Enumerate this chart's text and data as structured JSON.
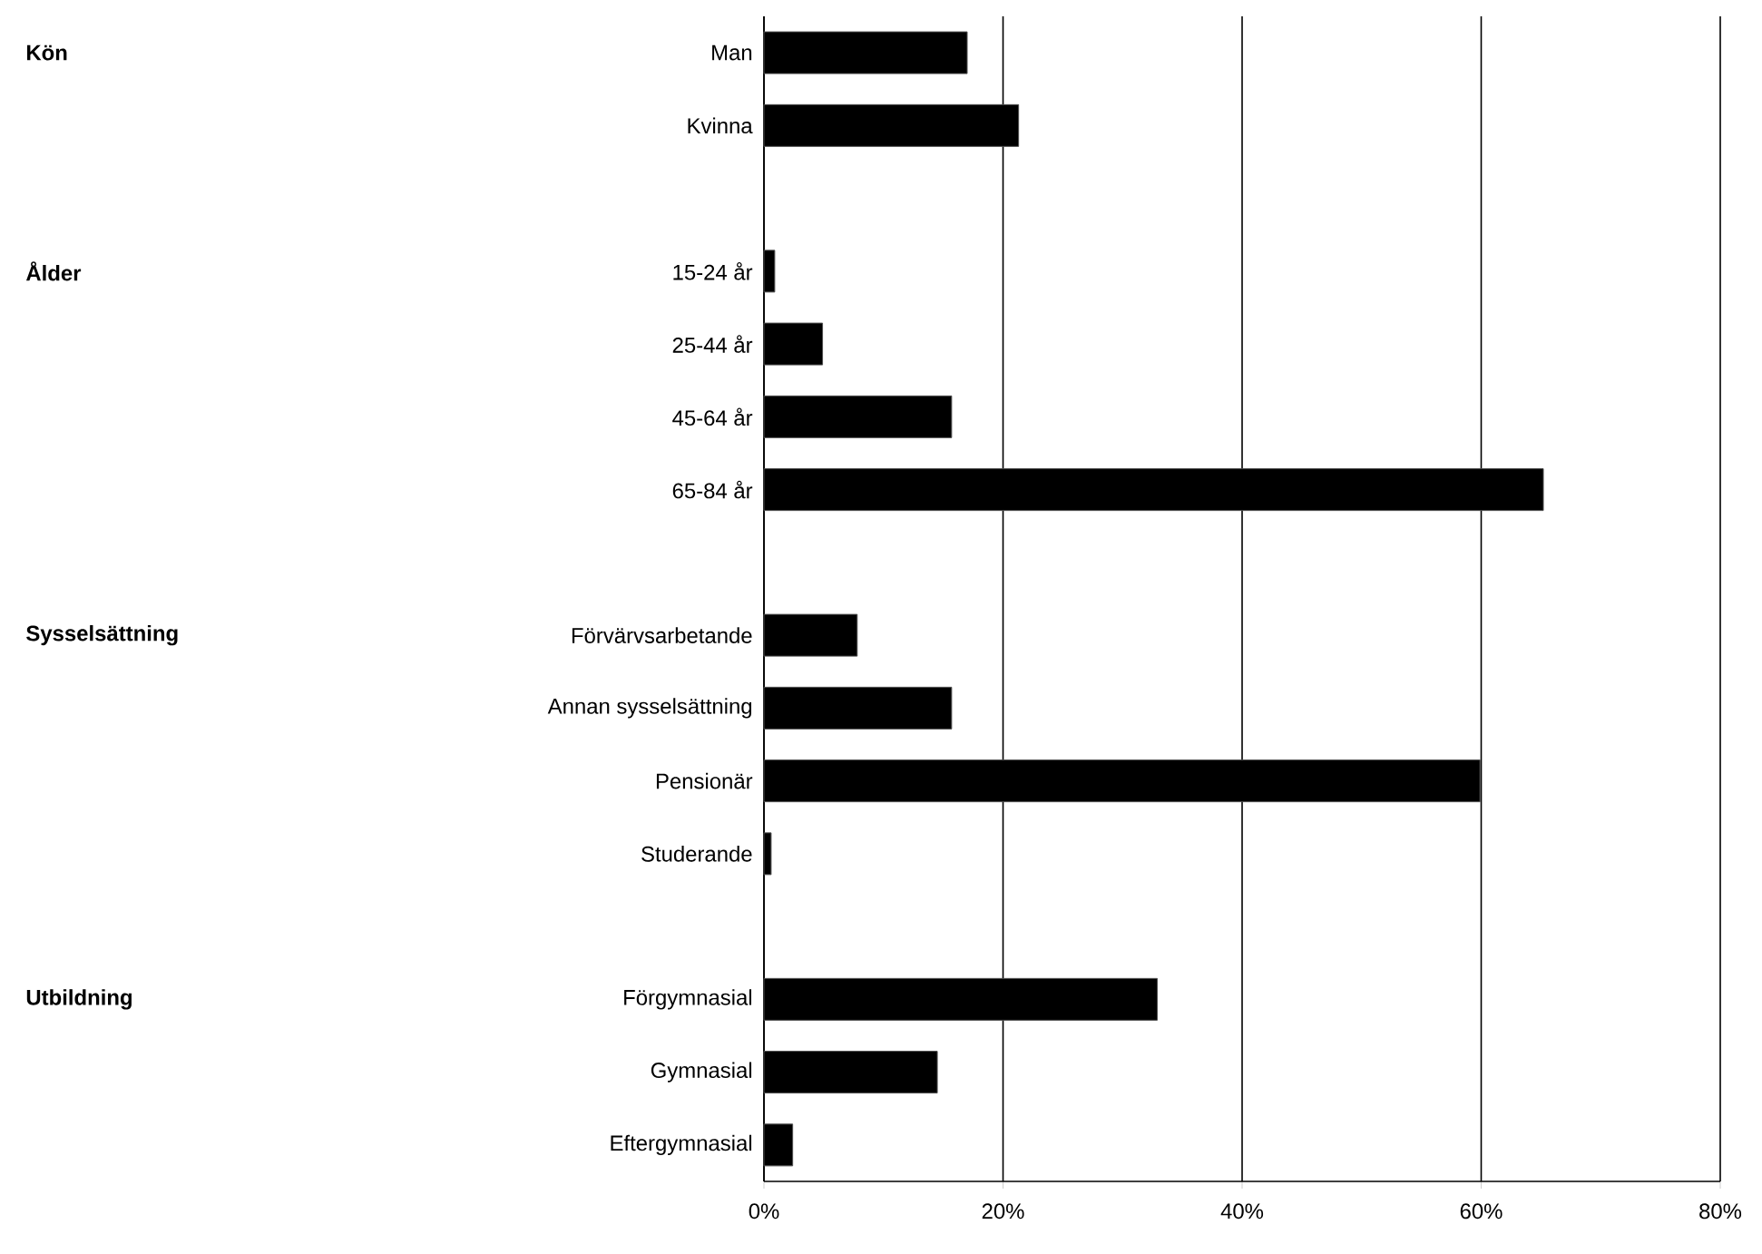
{
  "chart_data": {
    "type": "bar",
    "orientation": "horizontal",
    "categories": [
      "Man",
      "Kvinna",
      null,
      "15-24 år",
      "25-44 år",
      "45-64 år",
      "65-84 år",
      null,
      "Förvärvsarbetande",
      "Annan sysselsättning",
      "Pensionär",
      "Studerande",
      null,
      "Förgymnasial",
      "Gymnasial",
      "Eftergymnasial"
    ],
    "values": [
      17.0,
      21.3,
      null,
      0.9,
      4.9,
      15.7,
      65.2,
      null,
      7.8,
      15.7,
      59.9,
      0.6,
      null,
      32.9,
      14.5,
      2.4
    ],
    "color": "#000000",
    "xlim": [
      0,
      80
    ],
    "xticks": [
      {
        "value": 0,
        "label": "0%"
      },
      {
        "value": 20,
        "label": "20%"
      },
      {
        "value": 40,
        "label": "40%"
      },
      {
        "value": 60,
        "label": "60%"
      },
      {
        "value": 80,
        "label": "80%"
      }
    ],
    "grid": "x",
    "annotations": [
      "Kön",
      "Ålder",
      "Sysselsättning",
      "Utbildning"
    ]
  }
}
